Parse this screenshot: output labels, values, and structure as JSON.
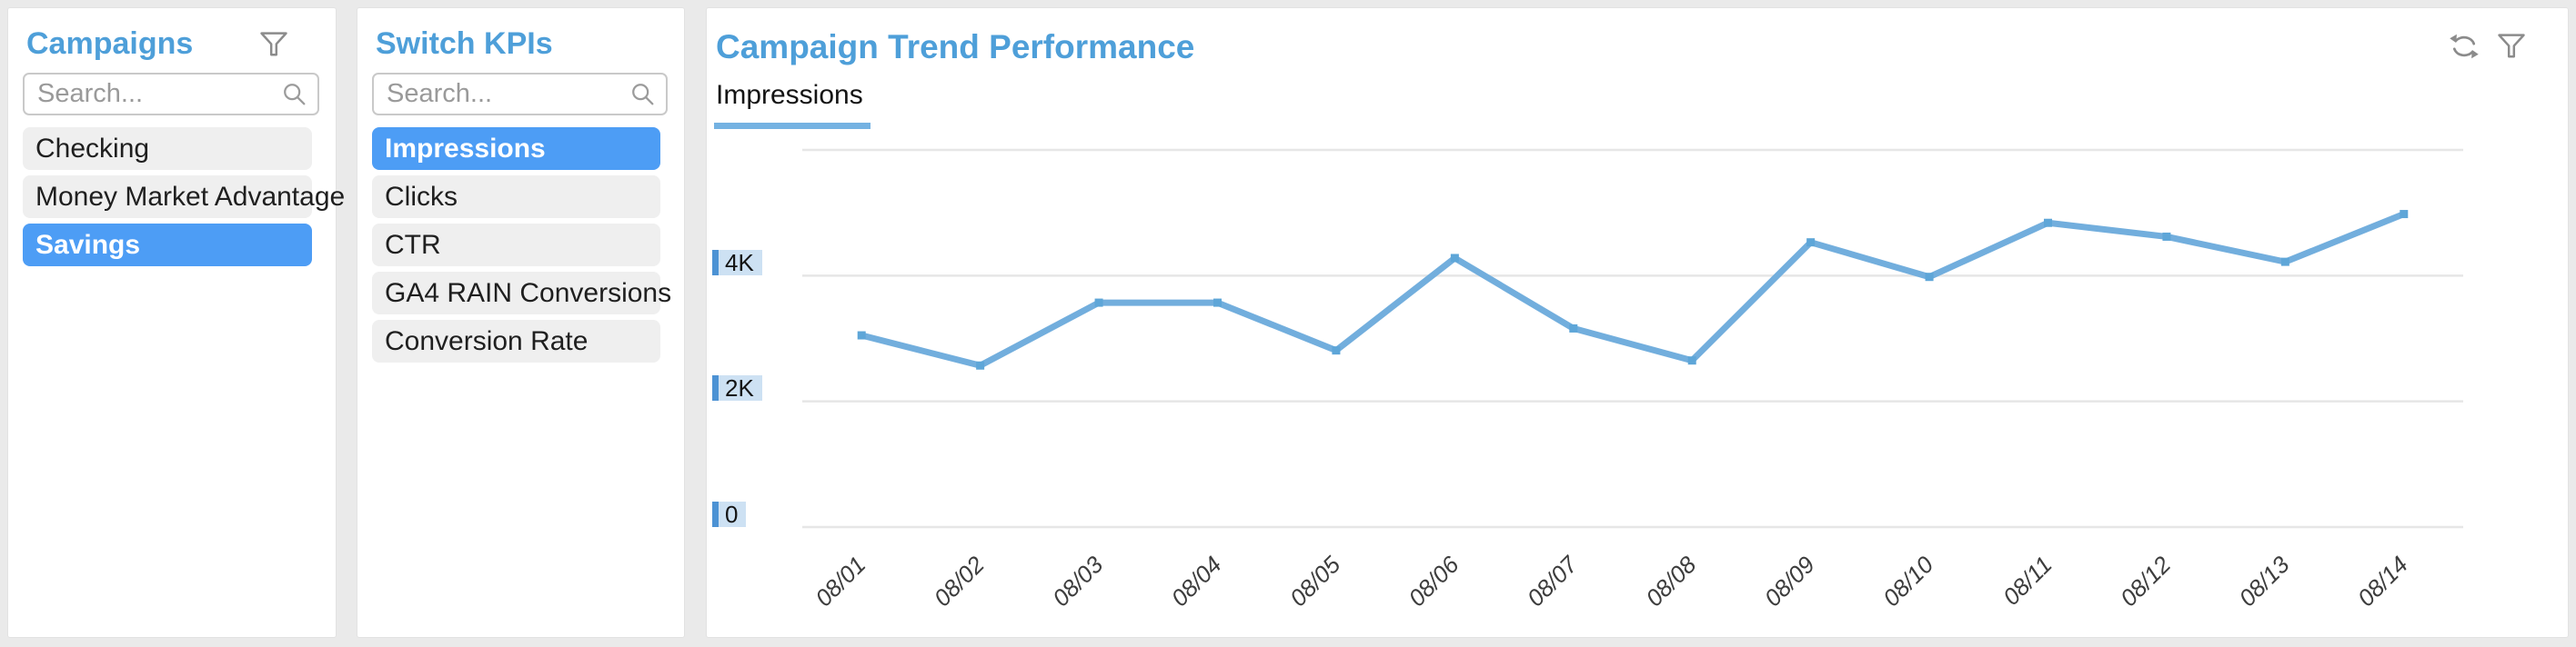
{
  "panels": {
    "campaigns": {
      "title": "Campaigns",
      "filter_icon": "funnel-icon",
      "search_placeholder": "Search...",
      "items": [
        {
          "label": "Checking",
          "selected": false
        },
        {
          "label": "Money Market Advantage",
          "selected": false
        },
        {
          "label": "Savings",
          "selected": true
        }
      ]
    },
    "kpis": {
      "title": "Switch KPIs",
      "search_placeholder": "Search...",
      "items": [
        {
          "label": "Impressions",
          "selected": true
        },
        {
          "label": "Clicks",
          "selected": false
        },
        {
          "label": "CTR",
          "selected": false
        },
        {
          "label": "GA4 RAIN Conversions",
          "selected": false
        },
        {
          "label": "Conversion Rate",
          "selected": false
        }
      ]
    },
    "chart": {
      "title": "Campaign Trend Performance",
      "active_tab": "Impressions",
      "toolbar_icons": [
        "sync-icon",
        "funnel-icon"
      ]
    }
  },
  "chart_data": {
    "type": "line",
    "title": "Campaign Trend Performance",
    "categories": [
      "08/01",
      "08/02",
      "08/03",
      "08/04",
      "08/05",
      "08/06",
      "08/07",
      "08/08",
      "08/09",
      "08/10",
      "08/11",
      "08/12",
      "08/13",
      "08/14"
    ],
    "series": [
      {
        "name": "Impressions",
        "values": [
          3050,
          2570,
          3570,
          3570,
          2810,
          4280,
          3160,
          2650,
          4530,
          3980,
          4840,
          4620,
          4220,
          4980
        ]
      }
    ],
    "ylim": [
      0,
      6000
    ],
    "gridline_values": [
      0,
      2000,
      4000,
      6000
    ],
    "y_tick_labels": [
      {
        "label": "4K",
        "value": 4000
      },
      {
        "label": "2K",
        "value": 2000
      },
      {
        "label": "0",
        "value": 0
      }
    ],
    "x_label_rotation": -45,
    "grid": "horizontal-only",
    "legend": "none",
    "line_color": "#72aedd",
    "marker_color": "#5ea6d8",
    "gridline_color": "#e6e6e6"
  },
  "colors": {
    "accent_blue": "#4e9fd9",
    "selection_blue": "#4d9df5",
    "line_blue": "#72aedd",
    "tick_chip_bg": "#cde1f3",
    "tick_chip_bar": "#4c92d4",
    "icon_gray": "#8b8b8b",
    "panel_bg": "#ffffff",
    "page_bg": "#eaeaea"
  }
}
